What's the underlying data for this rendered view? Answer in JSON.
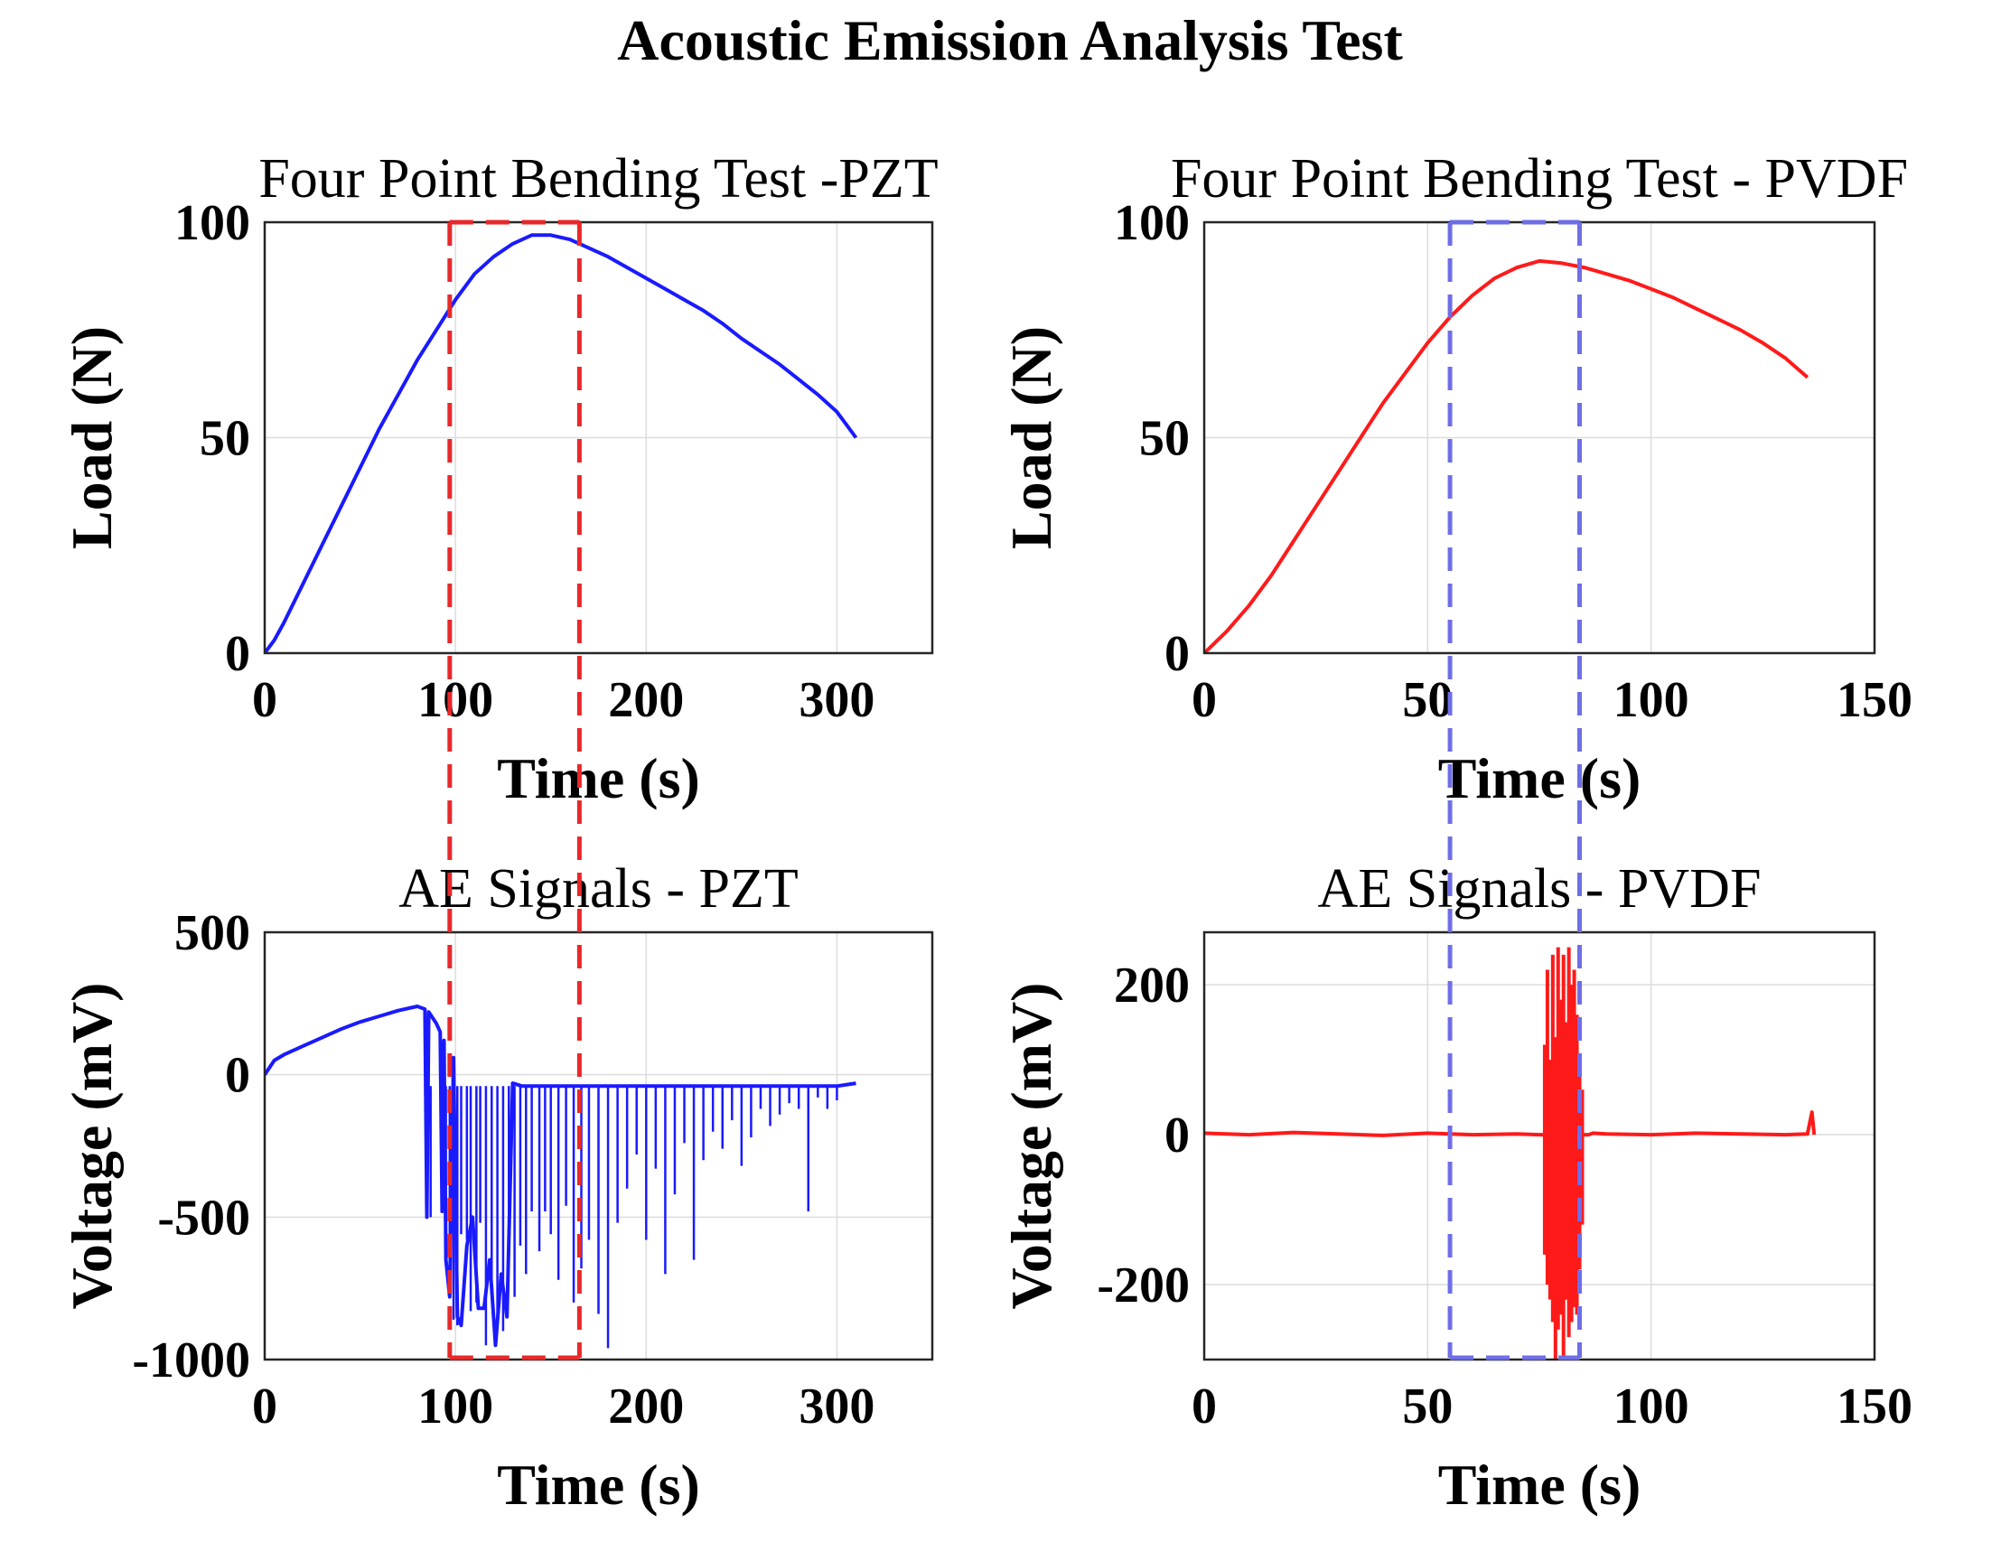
{
  "figure_title": "Acoustic Emission Analysis Test",
  "colors": {
    "pzt": "#1a1aff",
    "pvdf": "#ff1a1a",
    "pzt_box": "#e8282a",
    "pvdf_box": "#6e6ee6"
  },
  "chart_data": [
    {
      "id": "load-pzt",
      "type": "line",
      "title": "Four Point Bending Test -PZT",
      "xlabel": "Time (s)",
      "ylabel": "Load (N)",
      "xlim": [
        0,
        350
      ],
      "ylim": [
        0,
        100
      ],
      "xticks": [
        0,
        100,
        200,
        300
      ],
      "yticks": [
        0,
        50,
        100
      ],
      "color": "#1a1aff",
      "series": [
        {
          "name": "Load PZT",
          "x": [
            0,
            5,
            10,
            20,
            30,
            40,
            50,
            60,
            70,
            80,
            90,
            100,
            110,
            120,
            130,
            140,
            150,
            160,
            170,
            180,
            190,
            200,
            210,
            220,
            230,
            240,
            250,
            260,
            270,
            280,
            290,
            300,
            305,
            310
          ],
          "y": [
            0,
            3,
            7,
            16,
            25,
            34,
            43,
            52,
            60,
            68,
            75,
            82,
            88,
            92,
            95,
            97,
            97,
            96,
            94,
            92,
            89.5,
            87,
            84.5,
            82,
            79.5,
            76.5,
            73,
            70,
            67,
            63.5,
            60,
            56,
            53,
            50
          ]
        }
      ],
      "highlight_box": {
        "x": [
          97,
          165
        ],
        "color": "#e8282a"
      }
    },
    {
      "id": "load-pvdf",
      "type": "line",
      "title": "Four Point Bending Test - PVDF",
      "xlabel": "Time (s)",
      "ylabel": "Load (N)",
      "xlim": [
        0,
        150
      ],
      "ylim": [
        0,
        100
      ],
      "xticks": [
        0,
        50,
        100,
        150
      ],
      "yticks": [
        0,
        50,
        100
      ],
      "color": "#ff1a1a",
      "series": [
        {
          "name": "Load PVDF",
          "x": [
            0,
            5,
            10,
            15,
            20,
            25,
            30,
            35,
            40,
            45,
            50,
            55,
            60,
            65,
            70,
            75,
            80,
            85,
            90,
            95,
            100,
            105,
            110,
            115,
            120,
            125,
            130,
            135
          ],
          "y": [
            0,
            5,
            11,
            18,
            26,
            34,
            42,
            50,
            58,
            65,
            72,
            78,
            83,
            87,
            89.5,
            91,
            90.5,
            89.5,
            88,
            86.5,
            84.5,
            82.5,
            80,
            77.5,
            75,
            72,
            68.5,
            64
          ]
        }
      ],
      "highlight_box": {
        "x": [
          55,
          84
        ],
        "color": "#6e6ee6"
      }
    },
    {
      "id": "ae-pzt",
      "type": "line",
      "title": "AE Signals - PZT",
      "xlabel": "Time (s)",
      "ylabel": "Voltage (mV)",
      "xlim": [
        0,
        350
      ],
      "ylim": [
        -1000,
        500
      ],
      "xticks": [
        0,
        100,
        200,
        300
      ],
      "yticks": [
        -1000,
        -500,
        0,
        500
      ],
      "color": "#1a1aff",
      "series": [
        {
          "name": "AE PZT",
          "x": [
            0,
            5,
            10,
            20,
            30,
            40,
            50,
            60,
            70,
            80,
            84,
            85,
            86,
            88,
            90,
            92,
            93,
            94,
            95,
            97,
            99,
            101,
            103,
            106,
            109,
            112,
            115,
            118,
            121,
            124,
            127,
            130,
            135,
            140,
            150,
            160,
            170,
            180,
            190,
            200,
            210,
            220,
            230,
            240,
            250,
            260,
            270,
            280,
            290,
            300,
            310
          ],
          "y": [
            0,
            50,
            70,
            100,
            130,
            160,
            185,
            205,
            225,
            240,
            230,
            -500,
            220,
            200,
            180,
            150,
            -480,
            120,
            -650,
            -780,
            60,
            -850,
            -880,
            -600,
            -500,
            -820,
            -820,
            -650,
            -950,
            -700,
            -850,
            -30,
            -40,
            -40,
            -40,
            -40,
            -40,
            -40,
            -40,
            -40,
            -40,
            -40,
            -40,
            -40,
            -40,
            -40,
            -40,
            -40,
            -40,
            -40,
            -30
          ]
        }
      ],
      "spikes": [
        [
          87,
          -500
        ],
        [
          93,
          -450
        ],
        [
          95,
          -650
        ],
        [
          97,
          -780
        ],
        [
          99,
          -860
        ],
        [
          101,
          -880
        ],
        [
          103,
          -560
        ],
        [
          106,
          -580
        ],
        [
          108,
          -830
        ],
        [
          111,
          -800
        ],
        [
          113,
          -520
        ],
        [
          116,
          -950
        ],
        [
          119,
          -720
        ],
        [
          122,
          -860
        ],
        [
          125,
          -900
        ],
        [
          128,
          -620
        ],
        [
          131,
          -780
        ],
        [
          134,
          -600
        ],
        [
          137,
          -700
        ],
        [
          140,
          -480
        ],
        [
          144,
          -620
        ],
        [
          147,
          -480
        ],
        [
          150,
          -560
        ],
        [
          154,
          -720
        ],
        [
          158,
          -460
        ],
        [
          162,
          -800
        ],
        [
          166,
          -680
        ],
        [
          170,
          -580
        ],
        [
          175,
          -840
        ],
        [
          180,
          -960
        ],
        [
          185,
          -520
        ],
        [
          190,
          -400
        ],
        [
          195,
          -280
        ],
        [
          200,
          -580
        ],
        [
          205,
          -330
        ],
        [
          210,
          -700
        ],
        [
          215,
          -420
        ],
        [
          220,
          -240
        ],
        [
          225,
          -650
        ],
        [
          230,
          -300
        ],
        [
          235,
          -200
        ],
        [
          240,
          -260
        ],
        [
          245,
          -160
        ],
        [
          250,
          -320
        ],
        [
          255,
          -220
        ],
        [
          260,
          -120
        ],
        [
          265,
          -180
        ],
        [
          270,
          -140
        ],
        [
          275,
          -100
        ],
        [
          280,
          -120
        ],
        [
          285,
          -480
        ],
        [
          290,
          -80
        ],
        [
          295,
          -120
        ],
        [
          300,
          -90
        ]
      ],
      "highlight_box": {
        "x": [
          97,
          165
        ],
        "color": "#e8282a"
      }
    },
    {
      "id": "ae-pvdf",
      "type": "line",
      "title": "AE Signals - PVDF",
      "xlabel": "Time (s)",
      "ylabel": "Voltage (mV)",
      "xlim": [
        0,
        150
      ],
      "ylim": [
        -300,
        270
      ],
      "xticks": [
        0,
        50,
        100,
        150
      ],
      "yticks": [
        -200,
        0,
        200
      ],
      "color": "#ff1a1a",
      "series": [
        {
          "name": "AE PVDF",
          "x": [
            0,
            10,
            20,
            30,
            40,
            50,
            60,
            70,
            75,
            76,
            86,
            87,
            90,
            100,
            110,
            120,
            130,
            135,
            136,
            136.5
          ],
          "y": [
            2,
            0,
            3,
            1,
            -1,
            2,
            0,
            1,
            0,
            0,
            0,
            2,
            1,
            0,
            2,
            1,
            0,
            1,
            30,
            0
          ]
        }
      ],
      "bursts": [
        [
          76.2,
          120,
          -160
        ],
        [
          76.8,
          220,
          -200
        ],
        [
          77.4,
          100,
          -220
        ],
        [
          78.0,
          240,
          -250
        ],
        [
          78.6,
          130,
          -300
        ],
        [
          79.2,
          250,
          -260
        ],
        [
          79.8,
          180,
          -240
        ],
        [
          80.4,
          240,
          -310
        ],
        [
          81.0,
          150,
          -220
        ],
        [
          81.6,
          250,
          -270
        ],
        [
          82.2,
          200,
          -250
        ],
        [
          82.8,
          220,
          -230
        ],
        [
          83.4,
          160,
          -240
        ],
        [
          84.0,
          100,
          -180
        ],
        [
          84.6,
          60,
          -120
        ]
      ],
      "highlight_box": {
        "x": [
          55,
          84
        ],
        "color": "#6e6ee6"
      }
    }
  ]
}
